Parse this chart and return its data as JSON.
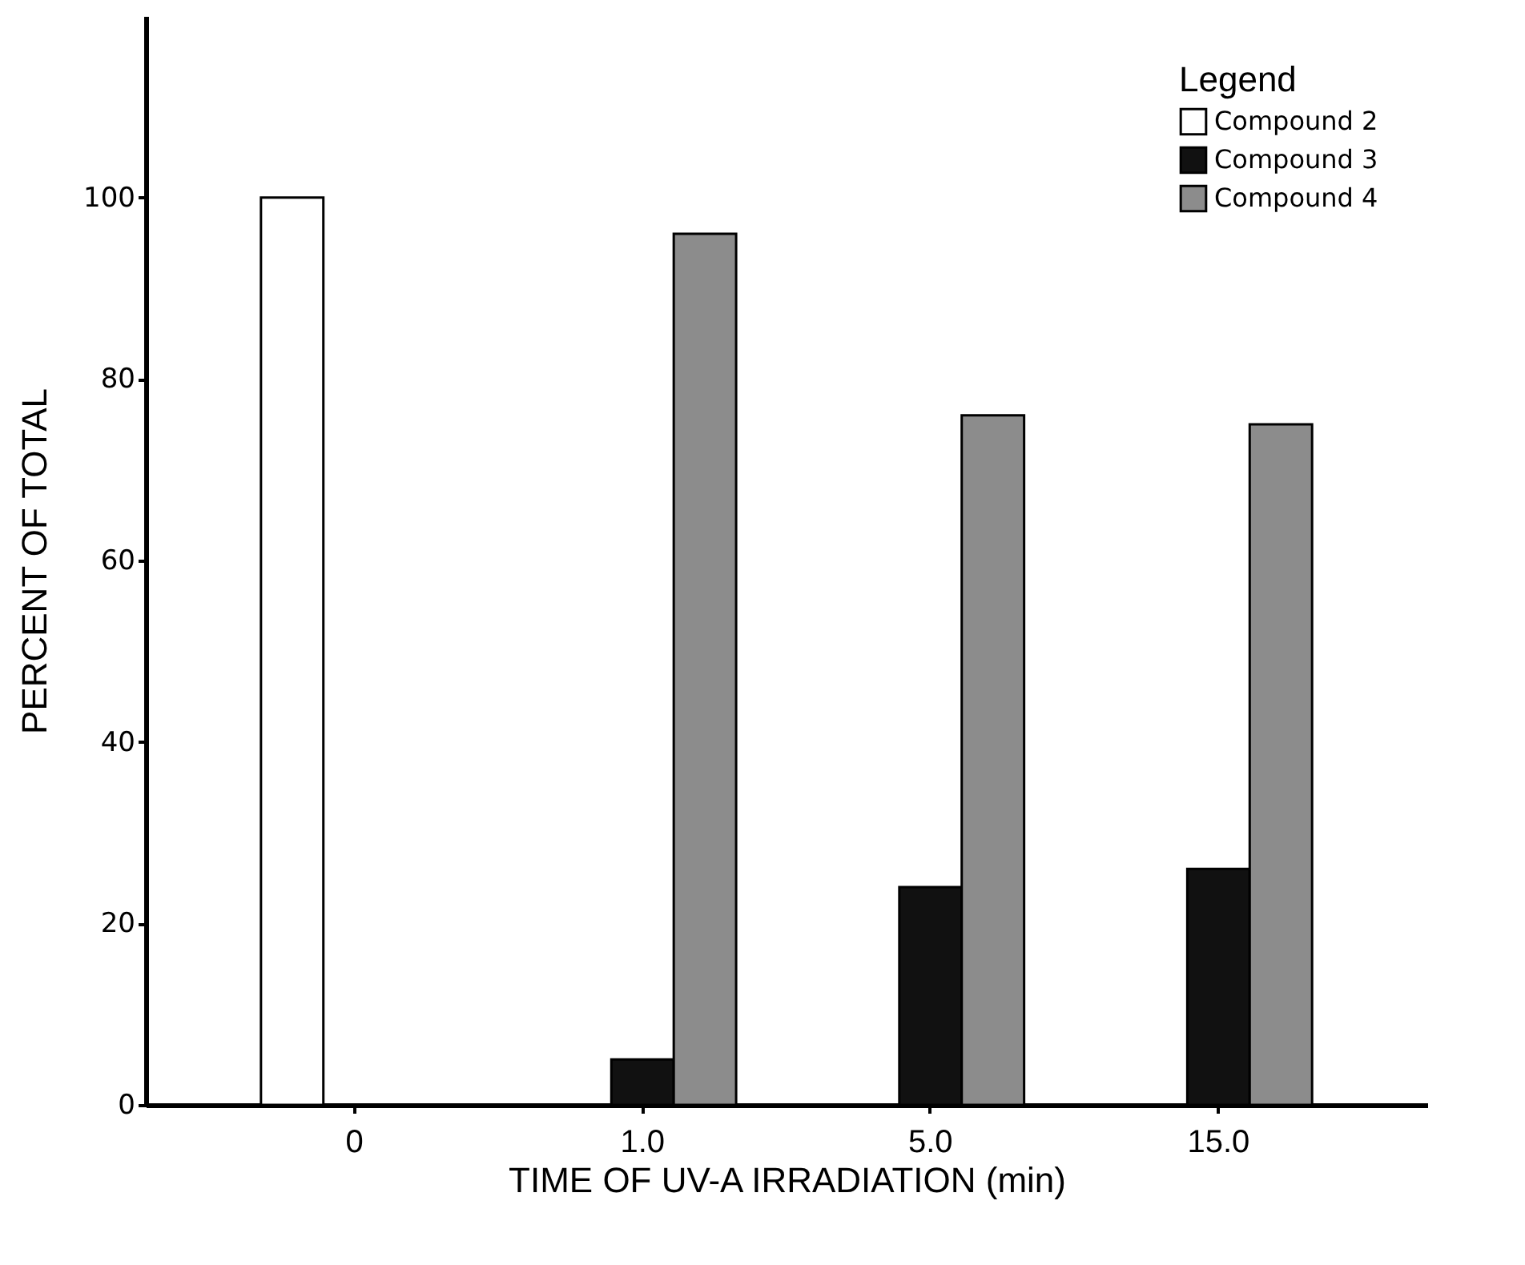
{
  "chart_data": {
    "type": "bar",
    "xlabel": "TIME OF UV-A IRRADIATION (min)",
    "ylabel": "PERCENT OF TOTAL",
    "legend_title": "Legend",
    "categories": [
      "0",
      "1.0",
      "5.0",
      "15.0"
    ],
    "series": [
      {
        "name": "Compound 2",
        "color": "#ffffff",
        "values": [
          100,
          null,
          null,
          null
        ]
      },
      {
        "name": "Compound 3",
        "color": "#111111",
        "values": [
          null,
          5,
          24,
          26
        ]
      },
      {
        "name": "Compound 4",
        "color": "#8c8c8c",
        "values": [
          null,
          96,
          76,
          75
        ]
      }
    ],
    "ylim": [
      0,
      120
    ],
    "yticks": [
      0,
      20,
      40,
      60,
      80,
      100
    ],
    "grid": false,
    "legend": "top right"
  }
}
